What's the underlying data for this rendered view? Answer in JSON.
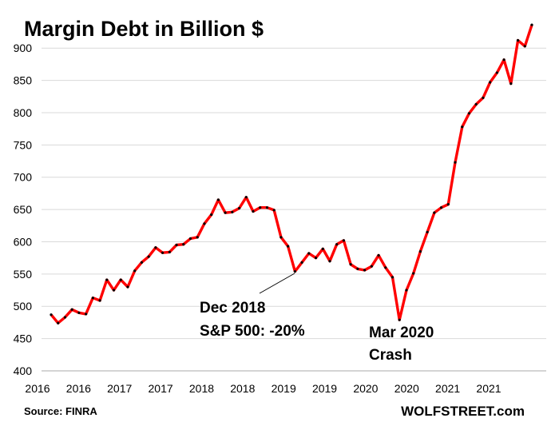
{
  "chart_data": {
    "type": "line",
    "title": "Margin Debt in Billion $",
    "xlabel": "",
    "ylabel": "",
    "ylim": [
      400,
      930
    ],
    "yticks": [
      400,
      450,
      500,
      550,
      600,
      650,
      700,
      750,
      800,
      850,
      900
    ],
    "xtick_labels": [
      "2016",
      "2016",
      "2017",
      "2017",
      "2018",
      "2018",
      "2019",
      "2019",
      "2020",
      "2020",
      "2021",
      "2021"
    ],
    "grid": true,
    "legend": "none",
    "line_color": "#ff0000",
    "marker_color": "#000000",
    "series": [
      {
        "values": [
          487,
          474,
          483,
          495,
          490,
          488,
          513,
          509,
          541,
          525,
          541,
          530,
          555,
          568,
          577,
          591,
          583,
          584,
          595,
          596,
          605,
          607,
          628,
          642,
          665,
          645,
          646,
          652,
          669,
          647,
          653,
          653,
          649,
          607,
          593,
          554,
          568,
          582,
          575,
          589,
          570,
          596,
          602,
          565,
          558,
          556,
          562,
          579,
          560,
          545,
          479,
          525,
          551,
          585,
          615,
          645,
          653,
          658,
          723,
          778,
          799,
          813,
          823,
          847,
          862,
          882,
          845,
          912,
          903,
          936
        ]
      }
    ],
    "annotations": [
      {
        "lines": [
          "Dec 2018",
          "S&P 500: -20%"
        ],
        "points_to": "Dec 2018"
      },
      {
        "lines": [
          "Mar 2020",
          "Crash"
        ],
        "points_to": "Mar 2020"
      }
    ]
  },
  "footer": {
    "source": "Source: FINRA",
    "brand": "WOLFSTREET.com"
  }
}
